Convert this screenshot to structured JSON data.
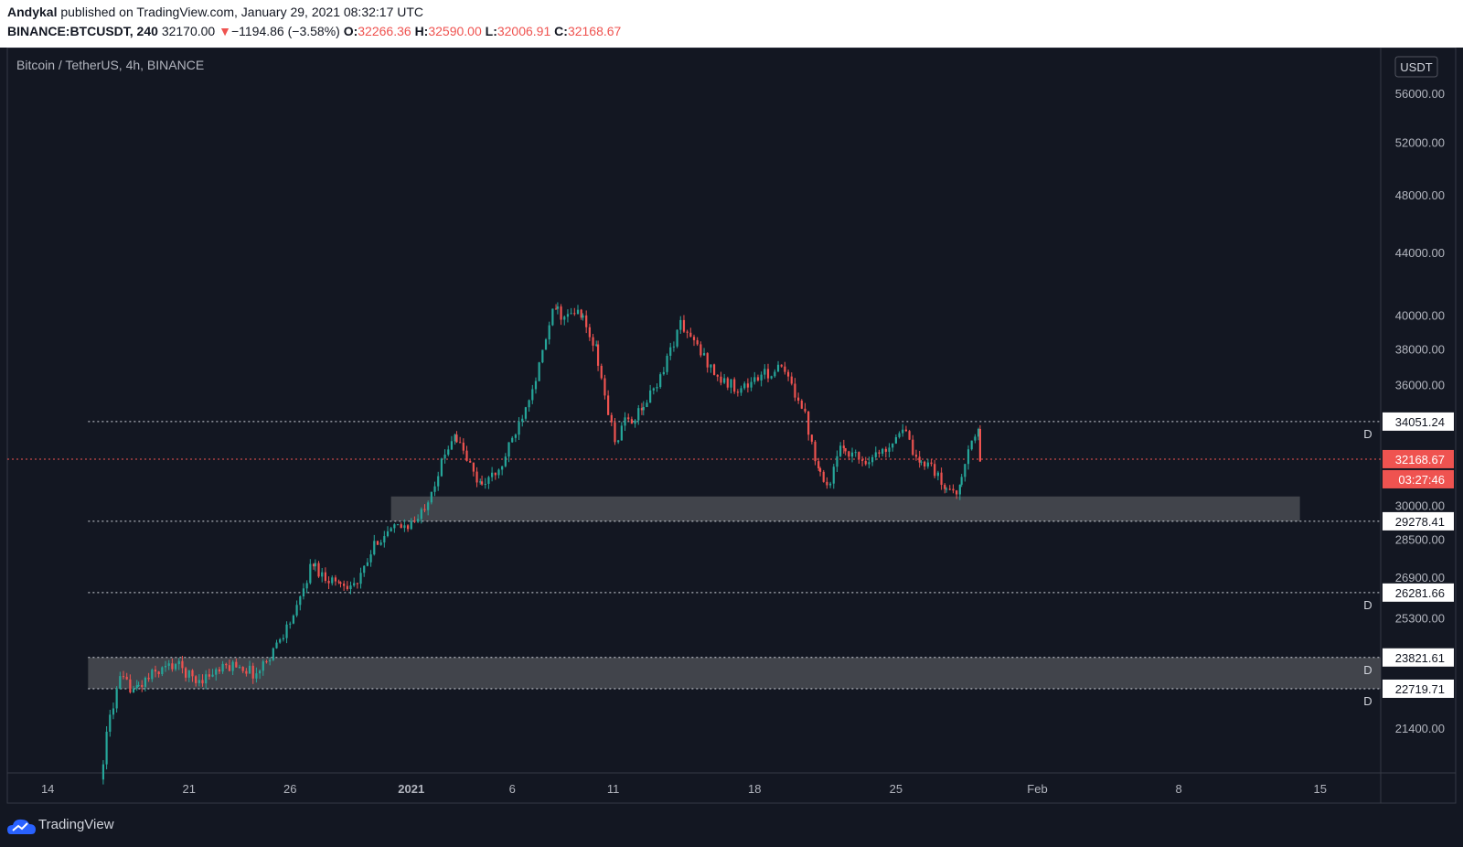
{
  "header": {
    "author": "Andykal",
    "published_text": "published on TradingView.com, January 29, 2021 08:32:17 UTC",
    "symbol": "BINANCE:BTCUSDT, 240",
    "last": "32170.00",
    "change_arrow": "▼",
    "change": "−1194.86 (−3.58%)",
    "o_label": "O:",
    "o": "32266.36",
    "h_label": "H:",
    "h": "32590.00",
    "l_label": "L:",
    "l": "32006.91",
    "c_label": "C:",
    "c": "32168.67"
  },
  "footer": {
    "brand": "TradingView"
  },
  "colors": {
    "up": "#26a69a",
    "down": "#ef5350",
    "background": "#131722",
    "zone": "#4a4c52"
  },
  "chart_data": {
    "type": "candlestick",
    "title": "Bitcoin / TetherUS, 4h, BINANCE",
    "currency": "USDT",
    "y_scale": "log",
    "ylim": [
      20000,
      60000
    ],
    "y_ticks": [
      "56000.00",
      "52000.00",
      "48000.00",
      "44000.00",
      "40000.00",
      "38000.00",
      "36000.00",
      "30000.00",
      "28500.00",
      "26900.00",
      "25300.00",
      "21400.00"
    ],
    "x_range": [
      "2020-12-12",
      "2021-02-18"
    ],
    "x_ticks": [
      {
        "date": "2020-12-14",
        "label": "14"
      },
      {
        "date": "2020-12-21",
        "label": "21"
      },
      {
        "date": "2020-12-26",
        "label": "26"
      },
      {
        "date": "2021-01-01",
        "label": "2021"
      },
      {
        "date": "2021-01-06",
        "label": "6"
      },
      {
        "date": "2021-01-11",
        "label": "11"
      },
      {
        "date": "2021-01-18",
        "label": "18"
      },
      {
        "date": "2021-01-25",
        "label": "25"
      },
      {
        "date": "2021-02-01",
        "label": "Feb"
      },
      {
        "date": "2021-02-08",
        "label": "8"
      },
      {
        "date": "2021-02-15",
        "label": "15"
      }
    ],
    "price_path": [
      [
        "2020-12-16T18:00",
        19800
      ],
      [
        "2020-12-17T06:00",
        21800
      ],
      [
        "2020-12-17T18:00",
        23000
      ],
      [
        "2020-12-18T12:00",
        22700
      ],
      [
        "2020-12-19T12:00",
        23300
      ],
      [
        "2020-12-20T12:00",
        23600
      ],
      [
        "2020-12-21T12:00",
        23000
      ],
      [
        "2020-12-22T12:00",
        23300
      ],
      [
        "2020-12-23T12:00",
        23600
      ],
      [
        "2020-12-24T12:00",
        23200
      ],
      [
        "2020-12-25T12:00",
        24300
      ],
      [
        "2020-12-26T12:00",
        25600
      ],
      [
        "2020-12-27T06:00",
        27500
      ],
      [
        "2020-12-27T18:00",
        27000
      ],
      [
        "2020-12-28T12:00",
        26700
      ],
      [
        "2020-12-29T12:00",
        26600
      ],
      [
        "2020-12-30T12:00",
        28500
      ],
      [
        "2020-12-31T12:00",
        29000
      ],
      [
        "2021-01-01T12:00",
        29300
      ],
      [
        "2021-01-02T12:00",
        31500
      ],
      [
        "2021-01-03T06:00",
        33500
      ],
      [
        "2021-01-03T18:00",
        32500
      ],
      [
        "2021-01-04T12:00",
        31000
      ],
      [
        "2021-01-05T12:00",
        31500
      ],
      [
        "2021-01-06T12:00",
        34000
      ],
      [
        "2021-01-07T12:00",
        37000
      ],
      [
        "2021-01-08T06:00",
        40500
      ],
      [
        "2021-01-08T18:00",
        39800
      ],
      [
        "2021-01-09T12:00",
        40200
      ],
      [
        "2021-01-10T06:00",
        38000
      ],
      [
        "2021-01-11T06:00",
        33000
      ],
      [
        "2021-01-11T18:00",
        34000
      ],
      [
        "2021-01-12T12:00",
        34500
      ],
      [
        "2021-01-13T12:00",
        36500
      ],
      [
        "2021-01-14T12:00",
        39500
      ],
      [
        "2021-01-15T12:00",
        37800
      ],
      [
        "2021-01-16T12:00",
        36200
      ],
      [
        "2021-01-17T12:00",
        35800
      ],
      [
        "2021-01-18T12:00",
        36500
      ],
      [
        "2021-01-19T12:00",
        36900
      ],
      [
        "2021-01-20T12:00",
        35000
      ],
      [
        "2021-01-21T06:00",
        32000
      ],
      [
        "2021-01-21T18:00",
        30800
      ],
      [
        "2021-01-22T12:00",
        32800
      ],
      [
        "2021-01-23T12:00",
        32100
      ],
      [
        "2021-01-24T12:00",
        32500
      ],
      [
        "2021-01-25T12:00",
        33800
      ],
      [
        "2021-01-26T06:00",
        31800
      ],
      [
        "2021-01-26T18:00",
        32200
      ],
      [
        "2021-01-27T12:00",
        30800
      ],
      [
        "2021-01-28T06:00",
        30700
      ],
      [
        "2021-01-28T18:00",
        32600
      ],
      [
        "2021-01-29T04:00",
        33500
      ],
      [
        "2021-01-29T08:00",
        32168.67
      ]
    ],
    "price_levels": [
      {
        "price": 34051.24,
        "label": "34051.24",
        "marker": "D"
      },
      {
        "price": 29278.41,
        "label": "29278.41",
        "marker": ""
      },
      {
        "price": 26281.66,
        "label": "26281.66",
        "marker": "D"
      },
      {
        "price": 23821.61,
        "label": "23821.61",
        "marker": "D"
      },
      {
        "price": 22719.71,
        "label": "22719.71",
        "marker": "D"
      }
    ],
    "current_price": {
      "value": 32168.67,
      "label": "32168.67",
      "countdown": "03:27:46"
    },
    "zones": [
      {
        "from": "2020-12-16",
        "to": "2021-02-18",
        "low": 22719.71,
        "high": 23821.61
      },
      {
        "from": "2020-12-31",
        "to": "2021-02-14",
        "low": 29278.41,
        "high": 30400
      }
    ]
  }
}
